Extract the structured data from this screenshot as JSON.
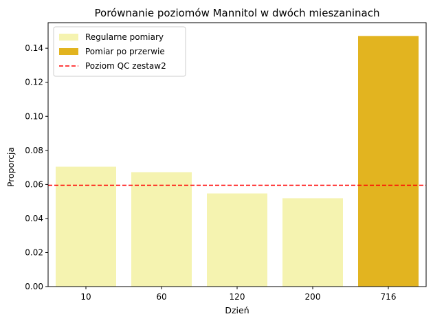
{
  "chart_data": {
    "type": "bar",
    "title": "Porównanie poziomów Mannitol w dwóch mieszaninach",
    "xlabel": "Dzień",
    "ylabel": "Proporcja",
    "categories": [
      "10",
      "60",
      "120",
      "200",
      "716"
    ],
    "values": [
      0.0704,
      0.0672,
      0.0547,
      0.0519,
      0.1472
    ],
    "bar_series_index": [
      0,
      0,
      0,
      0,
      1
    ],
    "series": [
      {
        "name": "Regularne pomiary",
        "color": "#f5f3b0"
      },
      {
        "name": "Pomiar po przerwie",
        "color": "#e2b420"
      }
    ],
    "reference_line": {
      "name": "Poziom QC zestaw2",
      "value": 0.0595,
      "color": "#ff0000",
      "style": "dashed"
    },
    "ylim": [
      0,
      0.155
    ],
    "yticks": [
      "0.00",
      "0.02",
      "0.04",
      "0.06",
      "0.08",
      "0.10",
      "0.12",
      "0.14"
    ],
    "legend_position": "top-left",
    "grid": false
  }
}
